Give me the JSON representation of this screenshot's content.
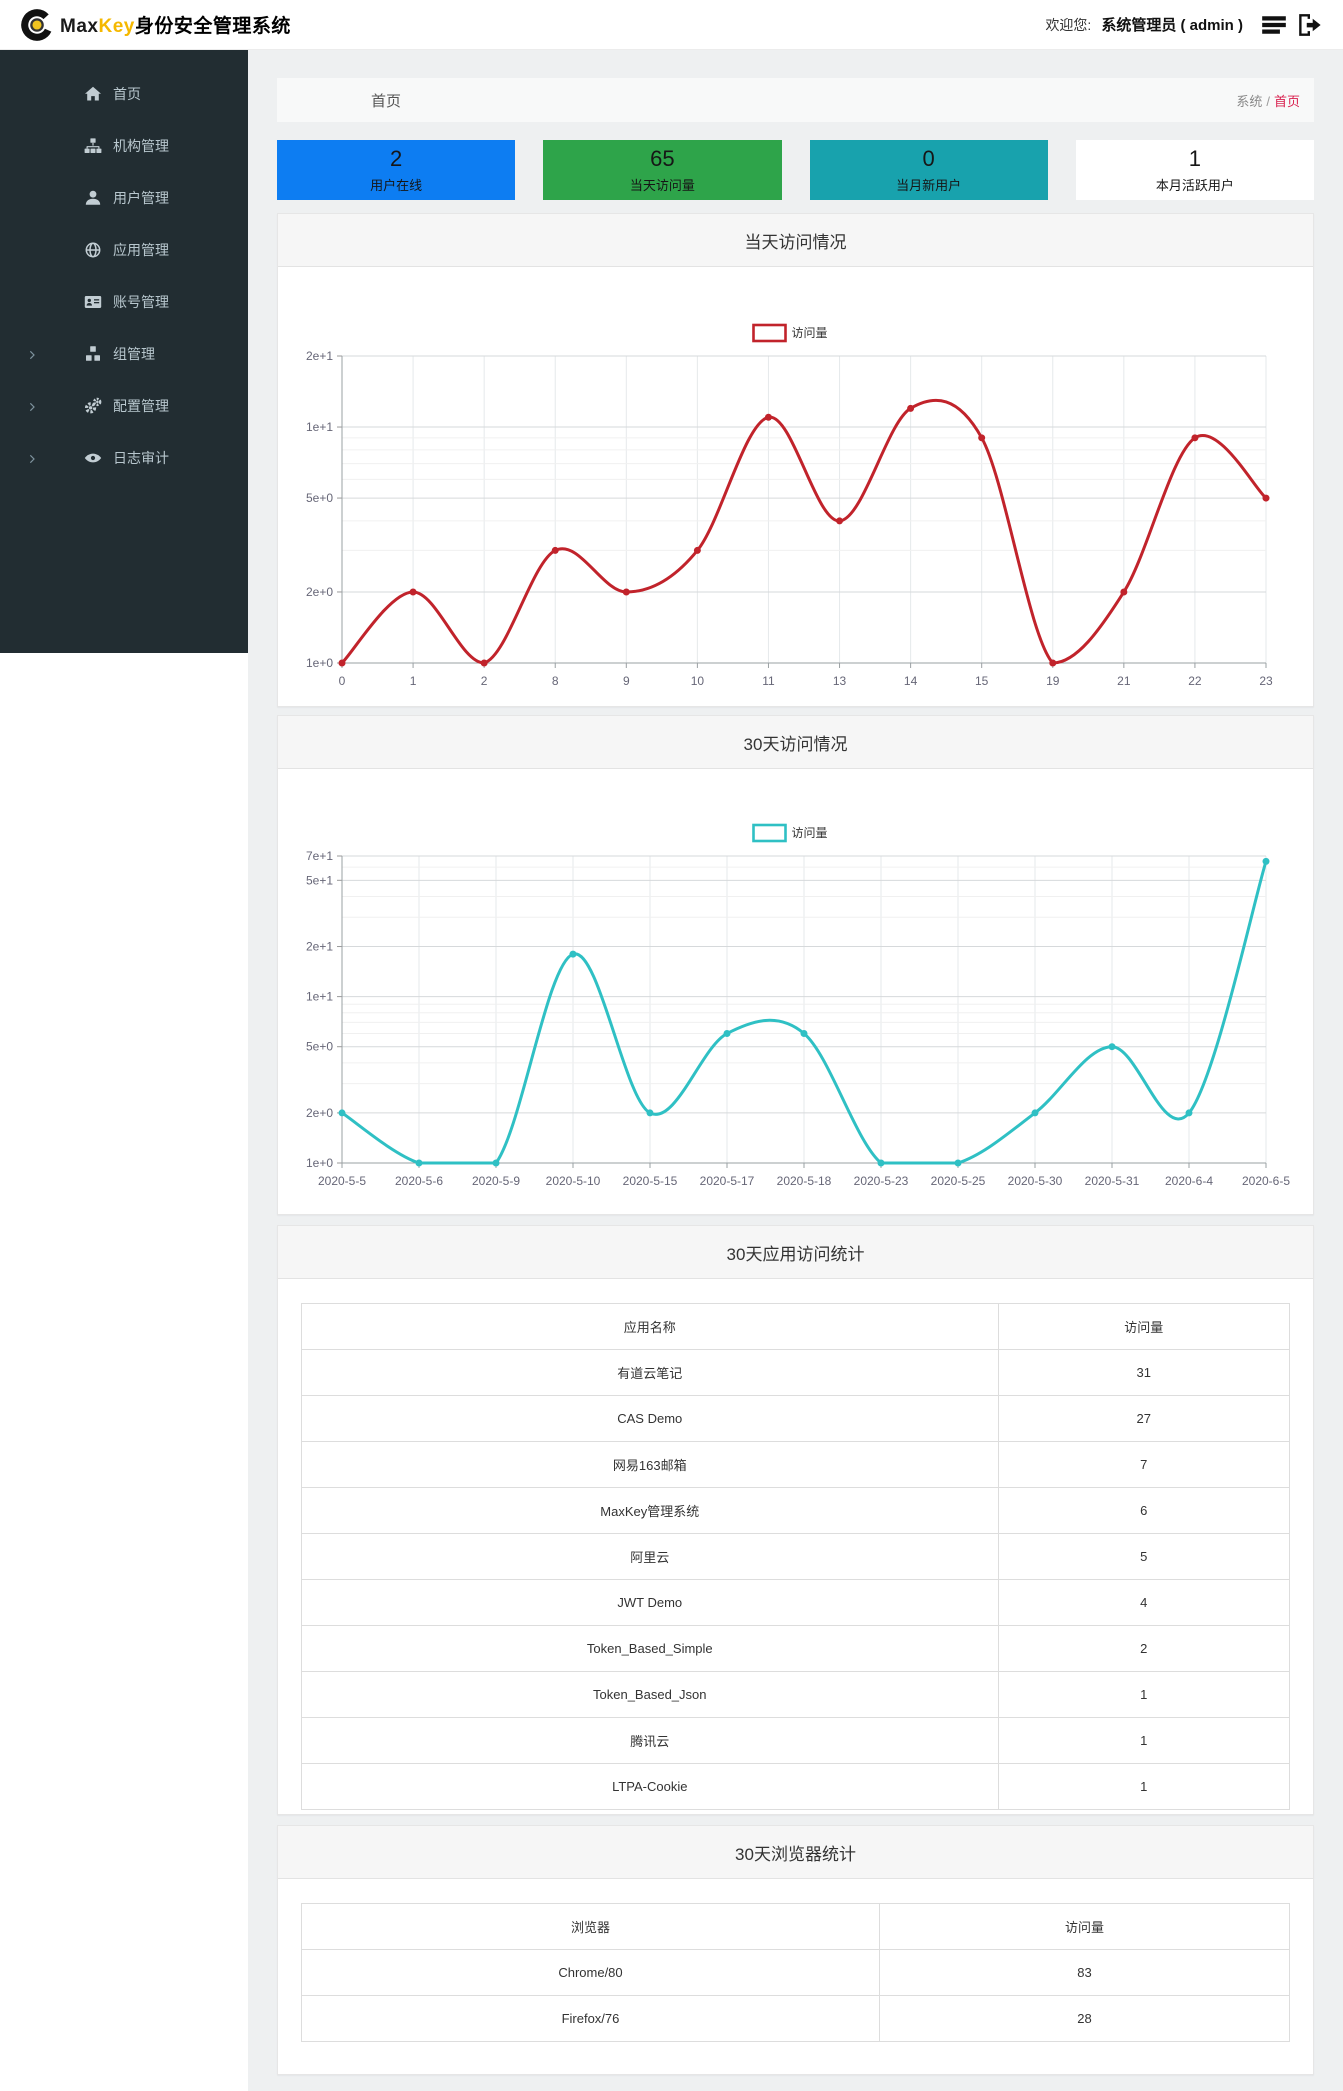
{
  "header": {
    "brand": {
      "max": "Max",
      "key": "Key",
      "suffix": "身份安全管理系统"
    },
    "welcome_label": "欢迎您:",
    "user": "系统管理员 ( admin )"
  },
  "sidebar": {
    "items": [
      {
        "name": "home",
        "label": "首页",
        "icon": "home-icon",
        "expandable": false
      },
      {
        "name": "org",
        "label": "机构管理",
        "icon": "sitemap-icon",
        "expandable": false
      },
      {
        "name": "user",
        "label": "用户管理",
        "icon": "user-icon",
        "expandable": false
      },
      {
        "name": "app",
        "label": "应用管理",
        "icon": "globe-icon",
        "expandable": false
      },
      {
        "name": "account",
        "label": "账号管理",
        "icon": "id-card-icon",
        "expandable": false
      },
      {
        "name": "group",
        "label": "组管理",
        "icon": "cubes-icon",
        "expandable": true
      },
      {
        "name": "config",
        "label": "配置管理",
        "icon": "gears-icon",
        "expandable": true
      },
      {
        "name": "audit",
        "label": "日志审计",
        "icon": "eye-icon",
        "expandable": true
      }
    ]
  },
  "breadcrumb": {
    "page_title": "首页",
    "section": "系统",
    "separator": "/",
    "active": "首页",
    "active_color": "#d9214f"
  },
  "stats": [
    {
      "value": "2",
      "label": "用户在线",
      "color": "#0d7df2"
    },
    {
      "value": "65",
      "label": "当天访问量",
      "color": "#2ea44a"
    },
    {
      "value": "0",
      "label": "当月新用户",
      "color": "#18a2ad"
    },
    {
      "value": "1",
      "label": "本月活跃用户",
      "color": "#ffffff"
    }
  ],
  "chart_data": [
    {
      "type": "line",
      "title": "当天访问情况",
      "legend": "访问量",
      "color": "#c1232b",
      "categories": [
        "0",
        "1",
        "2",
        "8",
        "9",
        "10",
        "11",
        "13",
        "14",
        "15",
        "19",
        "21",
        "22",
        "23"
      ],
      "values": [
        1,
        2,
        1,
        3,
        2,
        3,
        11,
        4,
        12,
        9,
        1,
        2,
        9,
        5
      ],
      "yscale": "log",
      "ylim": [
        1,
        20
      ],
      "yticks": [
        {
          "v": 1,
          "label": "1e+0"
        },
        {
          "v": 2,
          "label": "2e+0"
        },
        {
          "v": 5,
          "label": "5e+0"
        },
        {
          "v": 10,
          "label": "1e+1"
        },
        {
          "v": 20,
          "label": "2e+1"
        }
      ],
      "yticks_minor": [
        3,
        4,
        6,
        7,
        8,
        9
      ],
      "grid": true,
      "legend_position": "top-center"
    },
    {
      "type": "line",
      "title": "30天访问情况",
      "legend": "访问量",
      "color": "#2fc0c4",
      "categories": [
        "2020-5-5",
        "2020-5-6",
        "2020-5-9",
        "2020-5-10",
        "2020-5-15",
        "2020-5-17",
        "2020-5-18",
        "2020-5-23",
        "2020-5-25",
        "2020-5-30",
        "2020-5-31",
        "2020-6-4",
        "2020-6-5"
      ],
      "values": [
        2,
        1,
        1,
        18,
        2,
        6,
        6,
        1,
        1,
        2,
        5,
        2,
        65
      ],
      "yscale": "log",
      "ylim": [
        1,
        70
      ],
      "yticks": [
        {
          "v": 1,
          "label": "1e+0"
        },
        {
          "v": 2,
          "label": "2e+0"
        },
        {
          "v": 5,
          "label": "5e+0"
        },
        {
          "v": 10,
          "label": "1e+1"
        },
        {
          "v": 20,
          "label": "2e+1"
        },
        {
          "v": 50,
          "label": "5e+1"
        },
        {
          "v": 70,
          "label": "7e+1"
        }
      ],
      "yticks_minor": [
        3,
        4,
        6,
        7,
        8,
        9,
        30,
        40,
        60
      ],
      "grid": true,
      "legend_position": "top-center"
    }
  ],
  "tables": {
    "app": {
      "title": "30天应用访问统计",
      "headers": [
        "应用名称",
        "访问量"
      ],
      "rows": [
        [
          "有道云笔记",
          "31"
        ],
        [
          "CAS Demo",
          "27"
        ],
        [
          "网易163邮箱",
          "7"
        ],
        [
          "MaxKey管理系统",
          "6"
        ],
        [
          "阿里云",
          "5"
        ],
        [
          "JWT Demo",
          "4"
        ],
        [
          "Token_Based_Simple",
          "2"
        ],
        [
          "Token_Based_Json",
          "1"
        ],
        [
          "腾讯云",
          "1"
        ],
        [
          "LTPA-Cookie",
          "1"
        ]
      ]
    },
    "browser": {
      "title": "30天浏览器统计",
      "headers": [
        "浏览器",
        "访问量"
      ],
      "rows": [
        [
          "Chrome/80",
          "83"
        ],
        [
          "Firefox/76",
          "28"
        ]
      ]
    }
  }
}
